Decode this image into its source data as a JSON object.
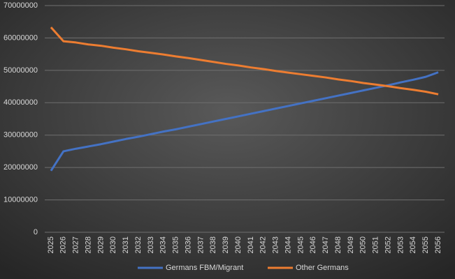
{
  "chart_data": {
    "type": "line",
    "categories": [
      "2025",
      "2026",
      "2027",
      "2028",
      "2029",
      "2030",
      "2031",
      "2032",
      "2033",
      "2034",
      "2035",
      "2036",
      "2037",
      "2038",
      "2039",
      "2040",
      "2041",
      "2042",
      "2043",
      "2044",
      "2045",
      "2046",
      "2047",
      "2048",
      "2049",
      "2050",
      "2051",
      "2052",
      "2053",
      "2054",
      "2055",
      "2056"
    ],
    "series": [
      {
        "name": "Germans FBM/Migrant",
        "color": "#4472c4",
        "values": [
          19000000,
          25000000,
          25800000,
          26500000,
          27200000,
          28000000,
          28800000,
          29500000,
          30300000,
          31100000,
          31800000,
          32600000,
          33400000,
          34200000,
          35000000,
          35800000,
          36600000,
          37400000,
          38200000,
          39000000,
          39800000,
          40600000,
          41400000,
          42200000,
          43000000,
          43800000,
          44600000,
          45400000,
          46300000,
          47100000,
          48000000,
          49400000
        ]
      },
      {
        "name": "Other Germans",
        "color": "#ed7d31",
        "values": [
          63300000,
          59000000,
          58600000,
          58000000,
          57600000,
          57000000,
          56500000,
          55900000,
          55400000,
          54900000,
          54300000,
          53800000,
          53200000,
          52600000,
          52000000,
          51500000,
          50900000,
          50400000,
          49800000,
          49300000,
          48800000,
          48300000,
          47800000,
          47200000,
          46700000,
          46100000,
          45600000,
          45100000,
          44500000,
          44000000,
          43400000,
          42600000
        ]
      }
    ],
    "ylim": [
      0,
      70000000
    ],
    "yticks": [
      0,
      10000000,
      20000000,
      30000000,
      40000000,
      50000000,
      60000000,
      70000000
    ],
    "grid": true,
    "legend": "bottom"
  }
}
